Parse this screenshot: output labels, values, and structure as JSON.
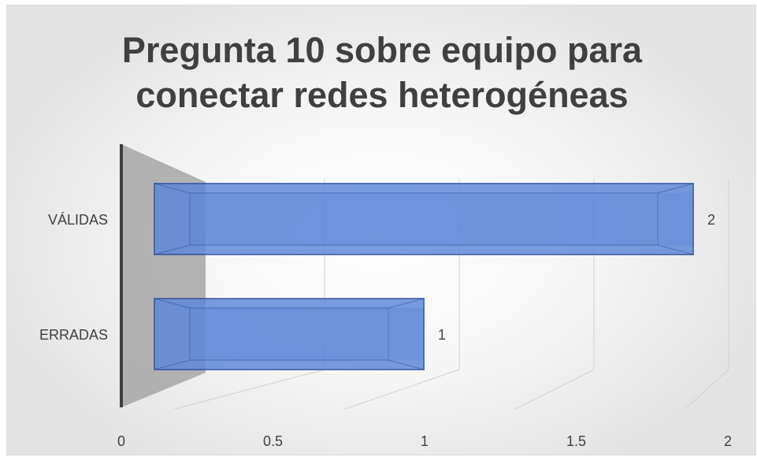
{
  "chart_data": {
    "type": "bar",
    "orientation": "horizontal",
    "style": "3d",
    "title": "Pregunta 10 sobre equipo para\nconectar redes heterogéneas",
    "categories": [
      "ERRADAS",
      "VÁLIDAS"
    ],
    "values": [
      1,
      2
    ],
    "data_labels": [
      "1",
      "2"
    ],
    "xlim": [
      0,
      2
    ],
    "x_ticks": [
      "0",
      "0.5",
      "1",
      "1.5",
      "2"
    ],
    "grid": true,
    "legend": "none",
    "colors": {
      "bar_front": "#5b87d8",
      "bar_edge": "#2f55a4",
      "wall": "#a6a6a6",
      "axis": "#404040",
      "gridline": "#d0d0d0"
    }
  }
}
